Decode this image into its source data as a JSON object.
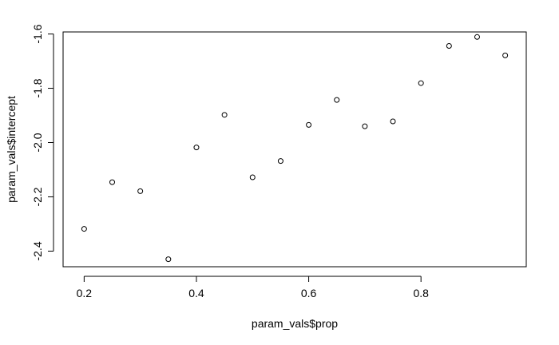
{
  "chart_data": {
    "type": "scatter",
    "title": "",
    "xlabel": "param_vals$prop",
    "ylabel": "param_vals$intercept",
    "xlim": [
      0.1625,
      0.9875
    ],
    "ylim": [
      -2.4575,
      -1.5925
    ],
    "xticks": [
      0.2,
      0.4,
      0.6,
      0.8
    ],
    "yticks": [
      -2.4,
      -2.2,
      -2.0,
      -1.8,
      -1.6
    ],
    "xtick_labels": [
      "0.2",
      "0.4",
      "0.6",
      "0.8"
    ],
    "ytick_labels": [
      "-2.4",
      "-2.2",
      "-2.0",
      "-1.8",
      "-1.6"
    ],
    "grid": false,
    "legend": "none",
    "marker": "open-circle",
    "point_color": "#000000",
    "x": [
      0.2,
      0.25,
      0.3,
      0.35,
      0.4,
      0.45,
      0.5,
      0.55,
      0.6,
      0.65,
      0.7,
      0.75,
      0.8,
      0.85,
      0.9,
      0.95
    ],
    "y": [
      -2.318,
      -2.146,
      -2.179,
      -2.43,
      -2.018,
      -1.898,
      -2.128,
      -2.068,
      -1.935,
      -1.843,
      -1.94,
      -1.922,
      -1.781,
      -1.644,
      -1.611,
      -1.679
    ]
  }
}
